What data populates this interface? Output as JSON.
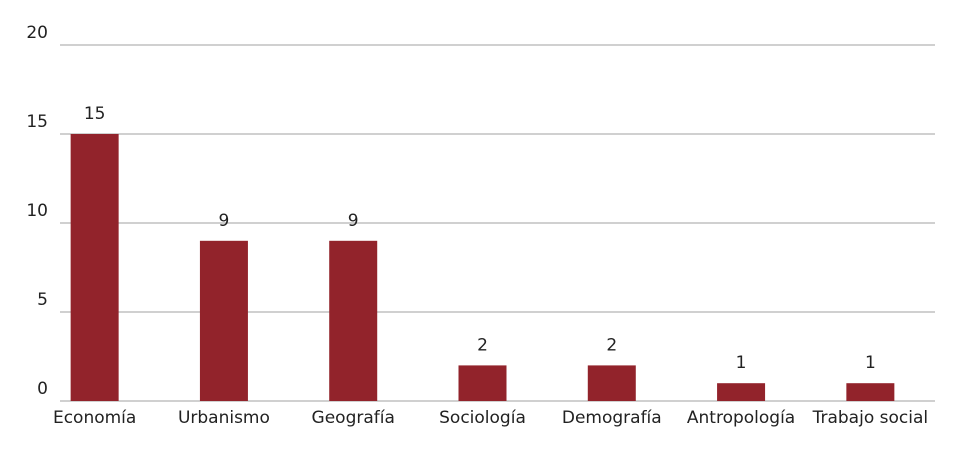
{
  "chart_data": {
    "type": "bar",
    "categories": [
      "Economía",
      "Urbanismo",
      "Geografía",
      "Sociología",
      "Demografía",
      "Antropología",
      "Trabajo social"
    ],
    "values": [
      15,
      9,
      9,
      2,
      2,
      1,
      1
    ],
    "color": "#92232b",
    "ylim": [
      0,
      20
    ],
    "yticks": [
      0,
      5,
      10,
      15,
      20
    ],
    "grid": true
  }
}
